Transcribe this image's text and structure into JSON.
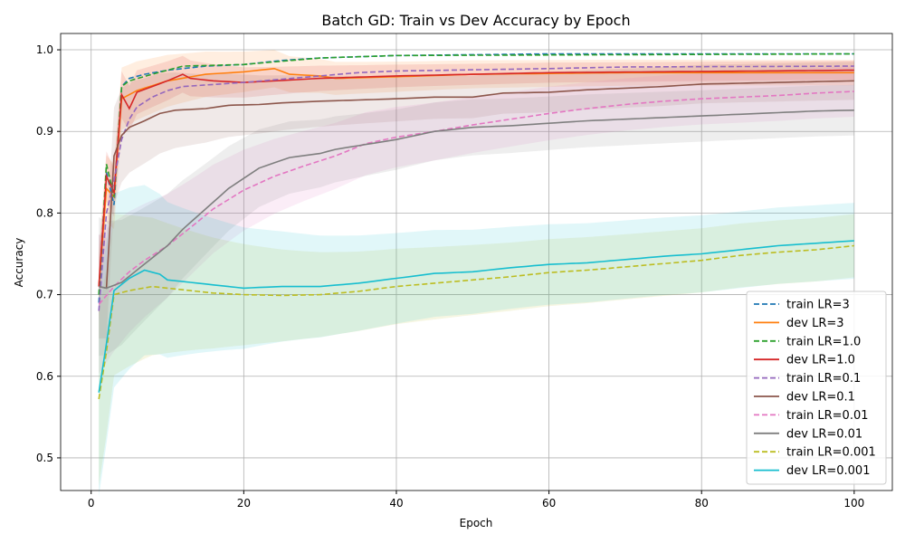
{
  "chart_data": {
    "type": "line",
    "title": "Batch GD: Train vs Dev Accuracy by Epoch",
    "xlabel": "Epoch",
    "ylabel": "Accuracy",
    "xlim": [
      -4,
      105
    ],
    "ylim": [
      0.46,
      1.02
    ],
    "xticks": [
      0,
      20,
      40,
      60,
      80,
      100
    ],
    "yticks": [
      0.5,
      0.6,
      0.7,
      0.8,
      0.9,
      1.0
    ],
    "xtick_labels": [
      "0",
      "20",
      "40",
      "60",
      "80",
      "100"
    ],
    "ytick_labels": [
      "0.5",
      "0.6",
      "0.7",
      "0.8",
      "0.9",
      "1.0"
    ],
    "grid": true,
    "legend_position": "bottom-right",
    "series": [
      {
        "name": "train LR=3",
        "style": "dashed",
        "color": "#1f77b4",
        "points": [
          [
            1,
            0.69
          ],
          [
            2,
            0.85
          ],
          [
            3,
            0.81
          ],
          [
            4,
            0.955
          ],
          [
            5,
            0.965
          ],
          [
            7,
            0.97
          ],
          [
            10,
            0.975
          ],
          [
            15,
            0.98
          ],
          [
            20,
            0.982
          ],
          [
            25,
            0.987
          ],
          [
            30,
            0.99
          ],
          [
            40,
            0.993
          ],
          [
            60,
            0.995
          ],
          [
            100,
            0.995
          ]
        ]
      },
      {
        "name": "dev LR=3",
        "style": "solid",
        "color": "#ff7f0e",
        "band": 0.02,
        "points": [
          [
            1,
            0.71
          ],
          [
            2,
            0.83
          ],
          [
            3,
            0.82
          ],
          [
            4,
            0.94
          ],
          [
            6,
            0.95
          ],
          [
            10,
            0.962
          ],
          [
            15,
            0.97
          ],
          [
            20,
            0.973
          ],
          [
            24,
            0.977
          ],
          [
            26,
            0.97
          ],
          [
            30,
            0.968
          ],
          [
            32,
            0.965
          ],
          [
            40,
            0.967
          ],
          [
            50,
            0.97
          ],
          [
            70,
            0.972
          ],
          [
            100,
            0.972
          ]
        ]
      },
      {
        "name": "train LR=1.0",
        "style": "dashed",
        "color": "#2ca02c",
        "points": [
          [
            1,
            0.7
          ],
          [
            2,
            0.86
          ],
          [
            3,
            0.82
          ],
          [
            4,
            0.955
          ],
          [
            5,
            0.962
          ],
          [
            8,
            0.97
          ],
          [
            12,
            0.98
          ],
          [
            20,
            0.982
          ],
          [
            30,
            0.99
          ],
          [
            40,
            0.993
          ],
          [
            100,
            0.995
          ]
        ]
      },
      {
        "name": "dev LR=1.0",
        "style": "solid",
        "color": "#d62728",
        "band": 0.015,
        "points": [
          [
            1,
            0.71
          ],
          [
            2,
            0.845
          ],
          [
            3,
            0.825
          ],
          [
            4,
            0.945
          ],
          [
            5,
            0.928
          ],
          [
            6,
            0.948
          ],
          [
            8,
            0.955
          ],
          [
            10,
            0.962
          ],
          [
            12,
            0.97
          ],
          [
            13,
            0.965
          ],
          [
            16,
            0.962
          ],
          [
            20,
            0.96
          ],
          [
            30,
            0.965
          ],
          [
            40,
            0.968
          ],
          [
            60,
            0.972
          ],
          [
            100,
            0.975
          ]
        ]
      },
      {
        "name": "train LR=0.1",
        "style": "dashed",
        "color": "#9467bd",
        "points": [
          [
            1,
            0.68
          ],
          [
            2,
            0.8
          ],
          [
            3,
            0.84
          ],
          [
            4,
            0.89
          ],
          [
            5,
            0.915
          ],
          [
            6,
            0.93
          ],
          [
            8,
            0.942
          ],
          [
            10,
            0.95
          ],
          [
            12,
            0.955
          ],
          [
            20,
            0.96
          ],
          [
            30,
            0.968
          ],
          [
            35,
            0.972
          ],
          [
            40,
            0.974
          ],
          [
            60,
            0.977
          ],
          [
            70,
            0.979
          ],
          [
            100,
            0.98
          ]
        ]
      },
      {
        "name": "dev LR=0.1",
        "style": "solid",
        "color": "#8c564b",
        "band": 0.03,
        "points": [
          [
            1,
            0.71
          ],
          [
            2,
            0.708
          ],
          [
            3,
            0.87
          ],
          [
            4,
            0.895
          ],
          [
            5,
            0.905
          ],
          [
            7,
            0.913
          ],
          [
            9,
            0.922
          ],
          [
            11,
            0.926
          ],
          [
            15,
            0.928
          ],
          [
            18,
            0.932
          ],
          [
            22,
            0.933
          ],
          [
            25,
            0.935
          ],
          [
            30,
            0.937
          ],
          [
            40,
            0.94
          ],
          [
            45,
            0.942
          ],
          [
            50,
            0.942
          ],
          [
            54,
            0.947
          ],
          [
            60,
            0.948
          ],
          [
            65,
            0.951
          ],
          [
            70,
            0.953
          ],
          [
            75,
            0.955
          ],
          [
            80,
            0.958
          ],
          [
            90,
            0.96
          ],
          [
            100,
            0.962
          ]
        ]
      },
      {
        "name": "train LR=0.01",
        "style": "dashed",
        "color": "#e377c2",
        "band": 0.04,
        "points": [
          [
            1,
            0.688
          ],
          [
            3,
            0.71
          ],
          [
            5,
            0.728
          ],
          [
            7,
            0.742
          ],
          [
            10,
            0.76
          ],
          [
            13,
            0.782
          ],
          [
            16,
            0.805
          ],
          [
            20,
            0.828
          ],
          [
            24,
            0.845
          ],
          [
            28,
            0.858
          ],
          [
            32,
            0.87
          ],
          [
            36,
            0.885
          ],
          [
            40,
            0.893
          ],
          [
            45,
            0.9
          ],
          [
            50,
            0.908
          ],
          [
            55,
            0.915
          ],
          [
            60,
            0.922
          ],
          [
            65,
            0.928
          ],
          [
            70,
            0.933
          ],
          [
            75,
            0.937
          ],
          [
            80,
            0.94
          ],
          [
            85,
            0.942
          ],
          [
            90,
            0.944
          ],
          [
            95,
            0.947
          ],
          [
            100,
            0.949
          ]
        ]
      },
      {
        "name": "dev LR=0.01",
        "style": "solid",
        "color": "#7f7f7f",
        "band": 0.04,
        "points": [
          [
            1,
            0.71
          ],
          [
            2,
            0.708
          ],
          [
            4,
            0.715
          ],
          [
            6,
            0.73
          ],
          [
            8,
            0.745
          ],
          [
            10,
            0.76
          ],
          [
            12,
            0.78
          ],
          [
            15,
            0.805
          ],
          [
            18,
            0.83
          ],
          [
            22,
            0.855
          ],
          [
            26,
            0.868
          ],
          [
            30,
            0.873
          ],
          [
            32,
            0.878
          ],
          [
            36,
            0.884
          ],
          [
            40,
            0.89
          ],
          [
            45,
            0.9
          ],
          [
            50,
            0.905
          ],
          [
            55,
            0.907
          ],
          [
            60,
            0.91
          ],
          [
            65,
            0.913
          ],
          [
            70,
            0.915
          ],
          [
            75,
            0.917
          ],
          [
            80,
            0.919
          ],
          [
            85,
            0.921
          ],
          [
            90,
            0.923
          ],
          [
            95,
            0.925
          ],
          [
            100,
            0.926
          ]
        ]
      },
      {
        "name": "train LR=0.001",
        "style": "dashed",
        "color": "#bcbd22",
        "band": 0.05,
        "points": [
          [
            1,
            0.572
          ],
          [
            2,
            0.63
          ],
          [
            3,
            0.7
          ],
          [
            5,
            0.705
          ],
          [
            8,
            0.71
          ],
          [
            12,
            0.706
          ],
          [
            16,
            0.702
          ],
          [
            20,
            0.7
          ],
          [
            25,
            0.699
          ],
          [
            30,
            0.7
          ],
          [
            35,
            0.704
          ],
          [
            40,
            0.71
          ],
          [
            45,
            0.714
          ],
          [
            50,
            0.718
          ],
          [
            55,
            0.722
          ],
          [
            60,
            0.727
          ],
          [
            65,
            0.73
          ],
          [
            70,
            0.734
          ],
          [
            75,
            0.738
          ],
          [
            80,
            0.742
          ],
          [
            85,
            0.748
          ],
          [
            90,
            0.752
          ],
          [
            95,
            0.755
          ],
          [
            100,
            0.76
          ]
        ]
      },
      {
        "name": "dev LR=0.001",
        "style": "solid",
        "color": "#17becf",
        "band": 0.06,
        "points": [
          [
            1,
            0.58
          ],
          [
            2,
            0.64
          ],
          [
            3,
            0.705
          ],
          [
            5,
            0.72
          ],
          [
            7,
            0.73
          ],
          [
            9,
            0.725
          ],
          [
            10,
            0.718
          ],
          [
            12,
            0.716
          ],
          [
            16,
            0.712
          ],
          [
            20,
            0.708
          ],
          [
            25,
            0.71
          ],
          [
            30,
            0.71
          ],
          [
            35,
            0.714
          ],
          [
            40,
            0.72
          ],
          [
            45,
            0.726
          ],
          [
            50,
            0.728
          ],
          [
            55,
            0.733
          ],
          [
            60,
            0.737
          ],
          [
            65,
            0.739
          ],
          [
            70,
            0.743
          ],
          [
            75,
            0.747
          ],
          [
            80,
            0.75
          ],
          [
            85,
            0.755
          ],
          [
            90,
            0.76
          ],
          [
            95,
            0.763
          ],
          [
            100,
            0.766
          ]
        ]
      }
    ]
  }
}
